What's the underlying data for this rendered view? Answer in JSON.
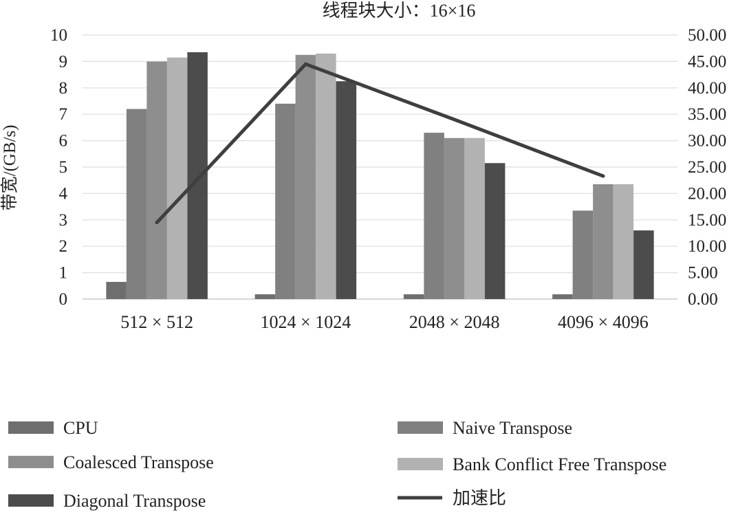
{
  "chart_data": {
    "type": "bar",
    "title": "线程块大小：16×16",
    "ylabel": "带宽/(GB/s)",
    "y2label": "",
    "categories": [
      "512 × 512",
      "1024 × 1024",
      "2048 × 2048",
      "4096 × 4096"
    ],
    "ylim": [
      0,
      10
    ],
    "y_ticks": [
      "0",
      "1",
      "2",
      "3",
      "4",
      "5",
      "6",
      "7",
      "8",
      "9",
      "10"
    ],
    "y2lim": [
      0,
      50
    ],
    "y2_ticks": [
      "0.00",
      "5.00",
      "10.00",
      "15.00",
      "20.00",
      "25.00",
      "30.00",
      "35.00",
      "40.00",
      "45.00",
      "50.00"
    ],
    "grid": true,
    "legend_position": "bottom",
    "series": [
      {
        "name": "CPU",
        "kind": "bar",
        "axis": "left",
        "color": "#6e6e6e",
        "values": [
          0.65,
          0.18,
          0.18,
          0.18
        ]
      },
      {
        "name": "Naive Transpose",
        "kind": "bar",
        "axis": "left",
        "color": "#808080",
        "values": [
          7.2,
          7.4,
          6.3,
          3.35
        ]
      },
      {
        "name": "Coalesced Transpose",
        "kind": "bar",
        "axis": "left",
        "color": "#8e8e8e",
        "values": [
          9.0,
          9.25,
          6.1,
          4.35
        ]
      },
      {
        "name": "Bank Conflict Free Transpose",
        "kind": "bar",
        "axis": "left",
        "color": "#b2b2b2",
        "values": [
          9.15,
          9.3,
          6.1,
          4.35
        ]
      },
      {
        "name": "Diagonal Transpose",
        "kind": "bar",
        "axis": "left",
        "color": "#4c4c4c",
        "values": [
          9.35,
          8.25,
          5.15,
          2.6
        ]
      },
      {
        "name": "加速比",
        "kind": "line",
        "axis": "right",
        "color": "#3f3f3f",
        "values": [
          14.5,
          44.5,
          34.0,
          23.3
        ]
      }
    ]
  }
}
